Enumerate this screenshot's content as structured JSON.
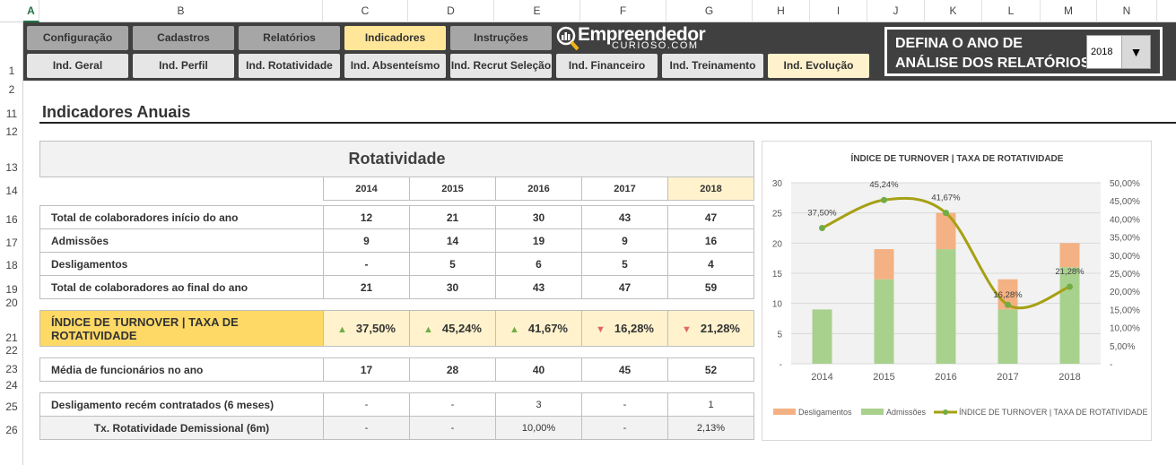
{
  "sheet": {
    "columns": [
      "A",
      "B",
      "C",
      "D",
      "E",
      "F",
      "G",
      "H",
      "I",
      "J",
      "K",
      "L",
      "M",
      "N"
    ],
    "rows": [
      "1",
      "2",
      "11",
      "12",
      "13",
      "14",
      "16",
      "17",
      "18",
      "19",
      "20",
      "21",
      "22",
      "23",
      "24",
      "25",
      "26"
    ]
  },
  "nav": {
    "top": [
      "Configuração",
      "Cadastros",
      "Relatórios",
      "Indicadores",
      "Instruções"
    ],
    "bottom": [
      "Ind. Geral",
      "Ind. Perfil",
      "Ind. Rotatividade",
      "Ind. Absenteísmo",
      "Ind. Recrut Seleção",
      "Ind. Financeiro",
      "Ind. Treinamento",
      "Ind. Evolução"
    ],
    "active_top": "Indicadores",
    "active_bottom": "Ind. Evolução"
  },
  "logo": {
    "name": "Empreendedor",
    "sub": "CURIOSO.COM"
  },
  "year_selector": {
    "line1": "DEFINA O ANO DE",
    "line2": "ANÁLISE DOS RELATÓRIOS",
    "value": "2018"
  },
  "page_title": "Indicadores Anuais",
  "table": {
    "title": "Rotatividade",
    "years": [
      "2014",
      "2015",
      "2016",
      "2017",
      "2018"
    ],
    "rows": [
      {
        "label": "Total de colaboradores início do ano",
        "values": [
          "12",
          "21",
          "30",
          "43",
          "47"
        ],
        "style": ""
      },
      {
        "label": "Admissões",
        "values": [
          "9",
          "14",
          "19",
          "9",
          "16"
        ],
        "style": "green"
      },
      {
        "label": "Desligamentos",
        "values": [
          "-",
          "5",
          "6",
          "5",
          "4"
        ],
        "style": "red"
      },
      {
        "label": "Total de colaboradores ao final do ano",
        "values": [
          "21",
          "30",
          "43",
          "47",
          "59"
        ],
        "style": ""
      }
    ],
    "turnover": {
      "label": "ÍNDICE DE TURNOVER | TAXA DE ROTATIVIDADE",
      "values": [
        "37,50%",
        "45,24%",
        "41,67%",
        "16,28%",
        "21,28%"
      ],
      "trend": [
        "up",
        "up",
        "up",
        "down",
        "down"
      ]
    },
    "media": {
      "label": "Média de funcionários no ano",
      "values": [
        "17",
        "28",
        "40",
        "45",
        "52"
      ]
    },
    "deslig6m": {
      "label": "Desligamento recém contratados (6 meses)",
      "values": [
        "-",
        "-",
        "3",
        "-",
        "1"
      ]
    },
    "tx6m": {
      "label": "Tx. Rotatividade Demissional (6m)",
      "values": [
        "-",
        "-",
        "10,00%",
        "-",
        "2,13%"
      ]
    }
  },
  "chart_data": {
    "type": "bar+line",
    "title": "ÍNDICE DE TURNOVER | TAXA DE ROTATIVIDADE",
    "categories": [
      "2014",
      "2015",
      "2016",
      "2017",
      "2018"
    ],
    "series": [
      {
        "name": "Admissões",
        "type": "stacked-bar",
        "values": [
          9,
          14,
          19,
          9,
          16
        ],
        "color": "#a9d18e"
      },
      {
        "name": "Desligamentos",
        "type": "stacked-bar",
        "values": [
          0,
          5,
          6,
          5,
          4
        ],
        "color": "#f4b183"
      },
      {
        "name": "ÍNDICE DE TURNOVER | TAXA DE ROTATIVIDADE",
        "type": "line",
        "axis": "right",
        "values": [
          37.5,
          45.24,
          41.67,
          16.28,
          21.28
        ],
        "labels": [
          "37,50%",
          "45,24%",
          "41,67%",
          "16,28%",
          "21,28%"
        ],
        "color": "#a5a014",
        "marker_color": "#70ad47"
      }
    ],
    "y_left": {
      "range": [
        0,
        30
      ],
      "ticks": [
        "-",
        "5",
        "10",
        "15",
        "20",
        "25",
        "30"
      ]
    },
    "y_right": {
      "range": [
        0,
        50
      ],
      "ticks": [
        "-",
        "5,00%",
        "10,00%",
        "15,00%",
        "20,00%",
        "25,00%",
        "30,00%",
        "35,00%",
        "40,00%",
        "45,00%",
        "50,00%"
      ]
    },
    "legend": [
      "Desligamentos",
      "Admissões",
      "ÍNDICE DE TURNOVER | TAXA DE ROTATIVIDADE"
    ],
    "legend_position": "bottom",
    "grid": true
  }
}
